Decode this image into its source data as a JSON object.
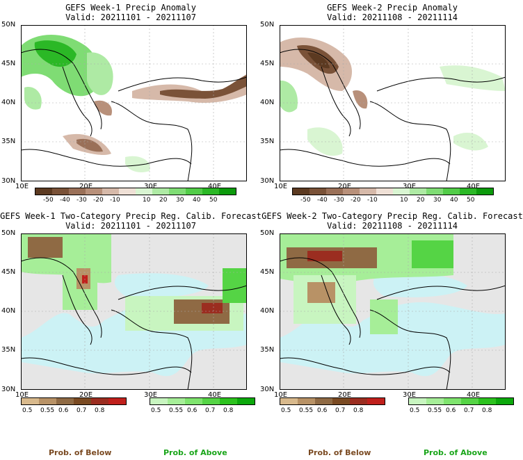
{
  "panels": [
    {
      "title": "GEFS Week-1 Precip Anomaly",
      "valid": "Valid: 20211101 - 20211107"
    },
    {
      "title": "GEFS Week-2 Precip Anomaly",
      "valid": "Valid: 20211108 - 20211114"
    },
    {
      "title": "GEFS Week-1 Two-Category Precip Reg. Calib. Forecast",
      "valid": "Valid: 20211101 - 20211107"
    },
    {
      "title": "GEFS Week-2 Two-Category Precip Reg. Calib. Forecast",
      "valid": "Valid: 20211108 - 20211114"
    }
  ],
  "axes": {
    "lat_labels": [
      "50N",
      "45N",
      "40N",
      "35N",
      "30N"
    ],
    "lon_labels": [
      "10E",
      "20E",
      "30E",
      "40E"
    ]
  },
  "anomaly_colorbar": {
    "labels": [
      "-50",
      "-40",
      "-30",
      "-20",
      "-10",
      "10",
      "20",
      "30",
      "40",
      "50"
    ],
    "dry_colors": [
      "#5c3a21",
      "#7a5238",
      "#9a7058",
      "#b8907a",
      "#d6b9a9",
      "#efe0d6"
    ],
    "wet_colors": [
      "#d9f5d2",
      "#aeeaa4",
      "#7fdc74",
      "#52cc48",
      "#2bb826",
      "#0c9a0c"
    ]
  },
  "prob_colorbar": {
    "labels": [
      "0.5",
      "0.55",
      "0.6",
      "0.7",
      "0.8"
    ],
    "below_colors": [
      "#d8b98c",
      "#b89266",
      "#8f6a44",
      "#7a4a22",
      "#9b2d20",
      "#c0201c"
    ],
    "above_colors": [
      "#c8f5c0",
      "#a6ee98",
      "#7fe46e",
      "#55d445",
      "#2cc21e",
      "#0ca80c"
    ]
  },
  "legend": {
    "below": "Prob. of Below",
    "above": "Prob. of Above",
    "below_color": "#7a4a22",
    "above_color": "#19a519"
  },
  "map_colors": {
    "sea_prob": "#ccf2f5",
    "land_masked": "#e6e6e6"
  }
}
